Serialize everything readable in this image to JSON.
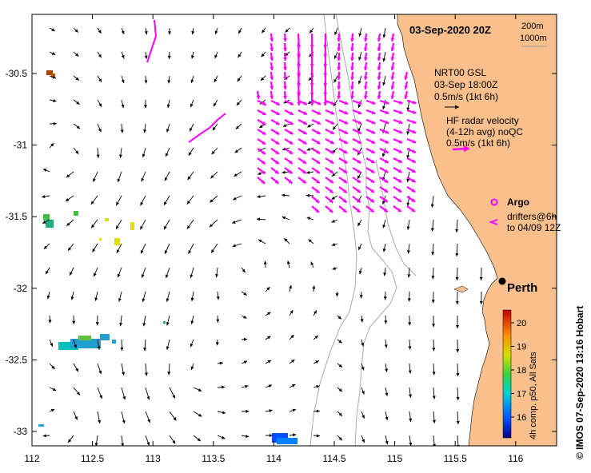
{
  "map": {
    "title": "03-Sep-2020 20Z",
    "depth_legend": {
      "contour_a": "200m",
      "contour_b": "1000m"
    },
    "x_ticks": [
      "112",
      "112.5",
      "113",
      "113.5",
      "114",
      "114.5",
      "115",
      "115.5",
      "116"
    ],
    "y_ticks": [
      "-30.5",
      "-31",
      "-31.5",
      "-32",
      "-32.5",
      "-33"
    ],
    "legend": {
      "model_line1": "NRT00 GSL",
      "model_line2": "03-Sep 18:00Z",
      "model_line3": "0.5m/s (1kt 6h)",
      "hf_line1": "HF radar velocity",
      "hf_line2": "(4-12h avg) noQC",
      "hf_line3": "0.5m/s (1kt 6h)",
      "argo_label": "Argo",
      "drifters_line1": "drifters@6h",
      "drifters_line2": "to 04/09 12Z"
    },
    "city": "Perth",
    "colorbar": {
      "label": "4h comp. p50, All Sats",
      "ticks": [
        "16",
        "17",
        "18",
        "19",
        "20"
      ]
    },
    "credit": "© IMOS 07-Sep-2020 13:16 Hobart",
    "colors": {
      "land": "#f9c08d",
      "hf_radar": "#ff00ff",
      "model_arrow": "#000000",
      "contour": "#aaaaaa"
    }
  }
}
